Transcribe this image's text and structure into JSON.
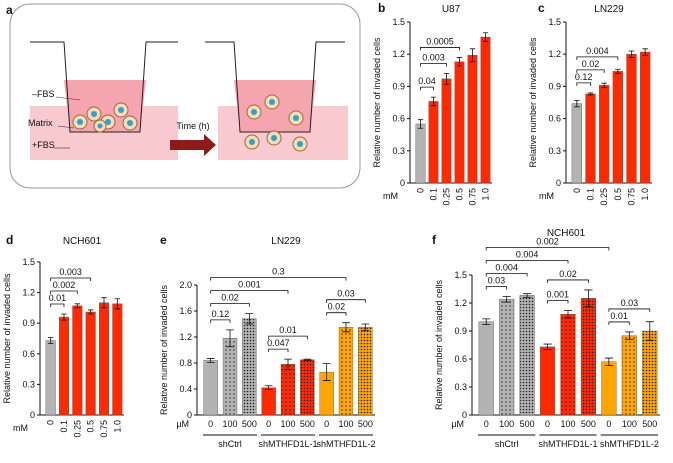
{
  "diagram": {
    "panel": "a",
    "minus_fbs": "–FBS",
    "matrix": "Matrix",
    "plus_fbs": "+FBS",
    "time": "Time (h)"
  },
  "chart_data": [
    {
      "type": "bar",
      "panel": "b",
      "title": "U87",
      "y_label": "Relative number of invaded cells",
      "x_unit": "mM",
      "categories": [
        "0",
        "0.1",
        "0.25",
        "0.5",
        "0.75",
        "1.0"
      ],
      "values": [
        0.55,
        0.76,
        0.97,
        1.13,
        1.19,
        1.36
      ],
      "errors": [
        0.04,
        0.04,
        0.05,
        0.04,
        0.06,
        0.04
      ],
      "colors": [
        "#b3b3b3",
        "#ff2a00",
        "#ff2a00",
        "#ff2a00",
        "#ff2a00",
        "#ff2a00"
      ],
      "ylim": [
        0,
        1.5
      ],
      "yticks": [
        0,
        0.3,
        0.6,
        0.9,
        1.2,
        1.5
      ],
      "brackets": [
        {
          "from": 0,
          "to": 1,
          "p": 0.04
        },
        {
          "from": 0,
          "to": 2,
          "p": 0.003
        },
        {
          "from": 0,
          "to": 3,
          "p": 0.0005
        }
      ]
    },
    {
      "type": "bar",
      "panel": "c",
      "title": "LN229",
      "y_label": "Relative number of invaded cells",
      "x_unit": "mM",
      "categories": [
        "0",
        "0.1",
        "0.25",
        "0.5",
        "0.75",
        "1.0"
      ],
      "values": [
        0.74,
        0.83,
        0.91,
        1.04,
        1.2,
        1.22
      ],
      "errors": [
        0.03,
        0.01,
        0.02,
        0.02,
        0.03,
        0.03
      ],
      "colors": [
        "#b3b3b3",
        "#ff2a00",
        "#ff2a00",
        "#ff2a00",
        "#ff2a00",
        "#ff2a00"
      ],
      "ylim": [
        0,
        1.5
      ],
      "yticks": [
        0,
        0.3,
        0.6,
        0.9,
        1.2,
        1.5
      ],
      "brackets": [
        {
          "from": 0,
          "to": 1,
          "p": 0.12
        },
        {
          "from": 0,
          "to": 2,
          "p": 0.02
        },
        {
          "from": 0,
          "to": 3,
          "p": 0.004
        }
      ]
    },
    {
      "type": "bar",
      "panel": "d",
      "title": "NCH601",
      "y_label": "Relative number of invaded cells",
      "x_unit": "mM",
      "categories": [
        "0",
        "0.1",
        "0.25",
        "0.5",
        "0.75",
        "1.0"
      ],
      "values": [
        0.73,
        0.96,
        1.07,
        1.01,
        1.1,
        1.09
      ],
      "errors": [
        0.03,
        0.03,
        0.02,
        0.02,
        0.05,
        0.05
      ],
      "colors": [
        "#b3b3b3",
        "#ff2a00",
        "#ff2a00",
        "#ff2a00",
        "#ff2a00",
        "#ff2a00"
      ],
      "ylim": [
        0,
        1.5
      ],
      "yticks": [
        0,
        0.3,
        0.6,
        0.9,
        1.2,
        1.5
      ],
      "brackets": [
        {
          "from": 0,
          "to": 1,
          "p": 0.01
        },
        {
          "from": 0,
          "to": 2,
          "p": 0.002
        },
        {
          "from": 0,
          "to": 3,
          "p": 0.003
        }
      ]
    },
    {
      "type": "grouped_bar",
      "panel": "e",
      "title": "LN229",
      "y_label": "Relative number of invaded cells",
      "x_unit": "μM",
      "categories": [
        "0",
        "100",
        "500"
      ],
      "series": [
        {
          "name": "shCtrl",
          "color": "#b3b3b3",
          "values": [
            0.84,
            1.18,
            1.48
          ],
          "errors": [
            0.03,
            0.13,
            0.08
          ]
        },
        {
          "name": "shMTHFD1L-1",
          "color": "#ff2a00",
          "values": [
            0.42,
            0.78,
            0.85
          ],
          "errors": [
            0.03,
            0.08,
            0.01
          ]
        },
        {
          "name": "shMTHFD1L-2",
          "color": "#ffa500",
          "values": [
            0.66,
            1.35,
            1.35
          ],
          "errors": [
            0.13,
            0.07,
            0.05
          ]
        }
      ],
      "ylim": [
        0,
        2
      ],
      "yticks": [
        0,
        0.4,
        0.8,
        1.2,
        1.6,
        {
          "value": 2,
          "label": "2.0"
        }
      ],
      "brackets": [
        {
          "from": 0,
          "to": 1,
          "p": 0.12
        },
        {
          "from": 0,
          "to": 2,
          "p": 0.02
        },
        {
          "from": 3,
          "to": 4,
          "p": 0.047
        },
        {
          "from": 3,
          "to": 5,
          "p": 0.01
        },
        {
          "from": 6,
          "to": 7,
          "p": 0.02
        },
        {
          "from": 6,
          "to": 8,
          "p": 0.03
        },
        {
          "from": 0,
          "to": 4,
          "p": 0.001
        },
        {
          "from": 0,
          "to": 7,
          "p": 0.3
        }
      ]
    },
    {
      "type": "grouped_bar",
      "panel": "f",
      "title": "NCH601",
      "y_label": "Relative number of invaded cells",
      "x_unit": "μM",
      "categories": [
        "0",
        "100",
        "500"
      ],
      "series": [
        {
          "name": "shCtrl",
          "color": "#b3b3b3",
          "values": [
            1.0,
            1.24,
            1.28
          ],
          "errors": [
            0.03,
            0.03,
            0.02
          ]
        },
        {
          "name": "shMTHFD1L-1",
          "color": "#ff2a00",
          "values": [
            0.73,
            1.08,
            1.25
          ],
          "errors": [
            0.03,
            0.04,
            0.09
          ]
        },
        {
          "name": "shMTHFD1L-2",
          "color": "#ffa500",
          "values": [
            0.57,
            0.85,
            0.9
          ],
          "errors": [
            0.04,
            0.04,
            0.1
          ]
        }
      ],
      "ylim": [
        0,
        1.5
      ],
      "yticks": [
        0,
        0.3,
        0.6,
        0.9,
        1.2,
        1.5
      ],
      "brackets": [
        {
          "from": 0,
          "to": 1,
          "p": 0.03
        },
        {
          "from": 0,
          "to": 2,
          "p": 0.004
        },
        {
          "from": 3,
          "to": 4,
          "p": 0.001
        },
        {
          "from": 3,
          "to": 5,
          "p": 0.02
        },
        {
          "from": 6,
          "to": 7,
          "p": 0.01
        },
        {
          "from": 6,
          "to": 8,
          "p": 0.03
        },
        {
          "from": 0,
          "to": 4,
          "p": 0.004
        },
        {
          "from": 0,
          "to": 6,
          "p": 0.002
        }
      ]
    }
  ]
}
